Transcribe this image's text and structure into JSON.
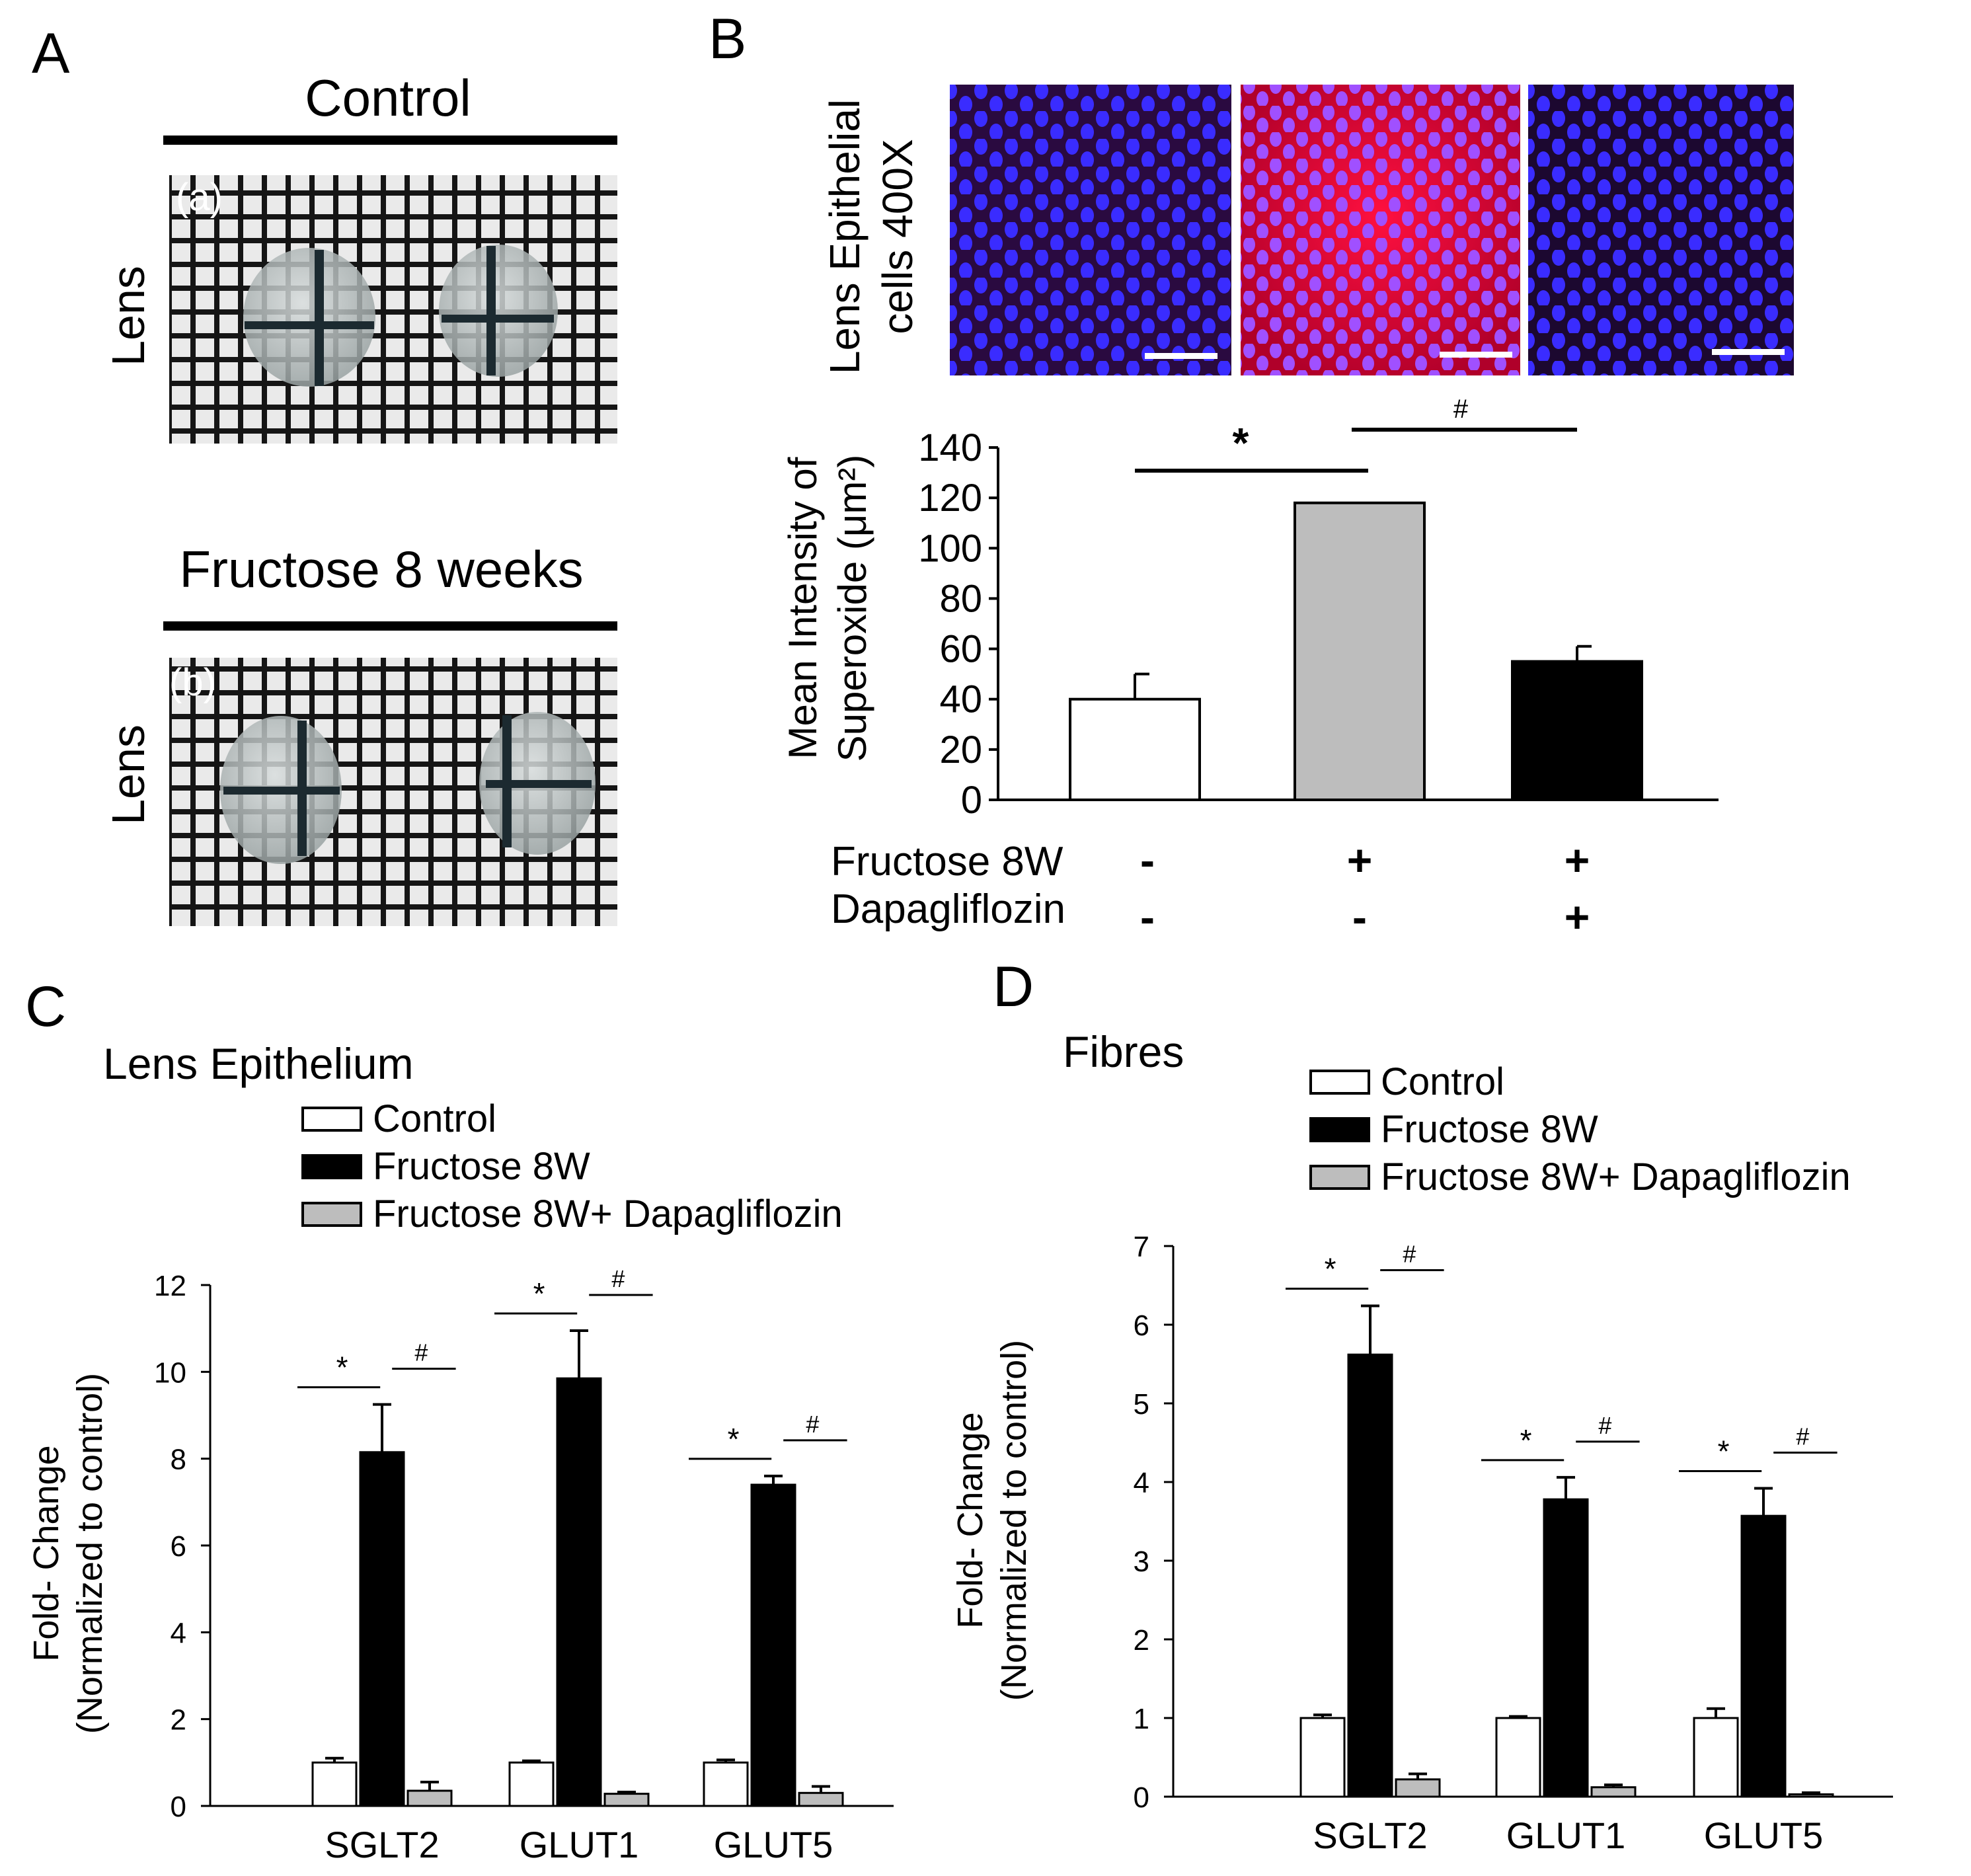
{
  "panels": {
    "A": {
      "letter": "A",
      "control_title": "Control",
      "fructose_title": "Fructose 8 weeks",
      "tag_a": "(a)",
      "tag_b": "(b)",
      "row_label": "Lens"
    },
    "B": {
      "letter": "B",
      "image_label_line1": "Lens Epithelial",
      "image_label_line2": "cells 400X",
      "table_rows": [
        {
          "label": "Fructose 8W",
          "signs": [
            "-",
            "+",
            "+"
          ]
        },
        {
          "label": "Dapagliflozin",
          "signs": [
            "-",
            "-",
            "+"
          ]
        }
      ]
    },
    "C": {
      "letter": "C"
    },
    "D": {
      "letter": "D"
    }
  },
  "colors": {
    "control": "#ffffff",
    "fructose": "#000000",
    "fructose_dapa": "#bdbdbd",
    "fructose_gray_B": "#bdbdbd",
    "axis": "#000000",
    "grid_bg": "#e8e8e8",
    "nucleus_blue": "#2a2aff",
    "stain_red": "#e8003c"
  },
  "chart_data": [
    {
      "id": "B",
      "type": "bar",
      "title": "",
      "ylabel_line1": "Mean Intensity of",
      "ylabel_line2": "Superoxide (μm²)",
      "ylim": [
        0,
        140
      ],
      "yticks": [
        0,
        20,
        40,
        60,
        80,
        100,
        120,
        140
      ],
      "bars": [
        {
          "group": "Control",
          "value": 40,
          "error": 10,
          "color": "#ffffff"
        },
        {
          "group": "Fructose 8W",
          "value": 118,
          "error": 0,
          "color": "#bdbdbd"
        },
        {
          "group": "Fructose 8W+ Dapagliflozin",
          "value": 55,
          "error": 6,
          "color": "#000000"
        }
      ],
      "significance": [
        {
          "from": 0,
          "to": 1,
          "symbol": "*"
        },
        {
          "from": 1,
          "to": 2,
          "symbol": "#"
        }
      ]
    },
    {
      "id": "C",
      "type": "bar",
      "title": "Lens Epithelium",
      "ylabel_line1": "Fold- Change",
      "ylabel_line2": "(Normalized to control)",
      "ylim": [
        0,
        12
      ],
      "yticks": [
        0,
        2,
        4,
        6,
        8,
        10,
        12
      ],
      "categories": [
        "SGLT2",
        "GLUT1",
        "GLUT5"
      ],
      "series": [
        {
          "name": "Control",
          "values": [
            1.0,
            1.0,
            1.0
          ],
          "errors": [
            0.1,
            0.04,
            0.06
          ],
          "color": "#ffffff"
        },
        {
          "name": "Fructose 8W",
          "values": [
            8.15,
            9.85,
            7.4
          ],
          "errors": [
            1.1,
            1.1,
            0.2
          ],
          "color": "#000000"
        },
        {
          "name": "Fructose 8W+ Dapagliflozin",
          "values": [
            0.35,
            0.28,
            0.3
          ],
          "errors": [
            0.2,
            0.04,
            0.15
          ],
          "color": "#bdbdbd"
        }
      ],
      "significance": [
        "*",
        "#"
      ]
    },
    {
      "id": "D",
      "type": "bar",
      "title": "Fibres",
      "ylabel_line1": "Fold- Change",
      "ylabel_line2": "(Normalized to control)",
      "ylim": [
        0,
        7
      ],
      "yticks": [
        0,
        1,
        2,
        3,
        4,
        5,
        6,
        7
      ],
      "categories": [
        "SGLT2",
        "GLUT1",
        "GLUT5"
      ],
      "series": [
        {
          "name": "Control",
          "values": [
            1.0,
            1.0,
            1.0
          ],
          "errors": [
            0.04,
            0.02,
            0.12
          ],
          "color": "#ffffff"
        },
        {
          "name": "Fructose 8W",
          "values": [
            5.62,
            3.78,
            3.57
          ],
          "errors": [
            0.62,
            0.28,
            0.35
          ],
          "color": "#000000"
        },
        {
          "name": "Fructose 8W+ Dapagliflozin",
          "values": [
            0.22,
            0.12,
            0.03
          ],
          "errors": [
            0.07,
            0.03,
            0.02
          ],
          "color": "#bdbdbd"
        }
      ],
      "significance": [
        "*",
        "#"
      ]
    }
  ]
}
